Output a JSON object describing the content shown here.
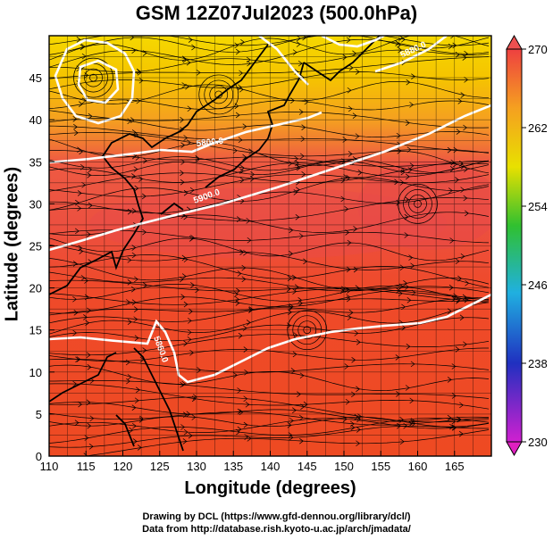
{
  "title": "GSM 12Z07Jul2023 (500.0hPa)",
  "axes": {
    "xlabel": "Longitude (degrees)",
    "ylabel": "Latitude  (degrees)",
    "xticks": [
      "110",
      "115",
      "120",
      "125",
      "130",
      "135",
      "140",
      "145",
      "150",
      "155",
      "160",
      "165"
    ],
    "yticks": [
      "0",
      "5",
      "10",
      "15",
      "20",
      "25",
      "30",
      "35",
      "40",
      "45"
    ],
    "xrange": [
      110,
      170
    ],
    "yrange": [
      0,
      50
    ]
  },
  "colorbar": {
    "ticks": [
      "270",
      "262",
      "254",
      "246",
      "238",
      "230"
    ],
    "range": [
      230,
      270
    ]
  },
  "contours": [
    {
      "label": "5800.0",
      "value": 5800
    },
    {
      "label": "5900.0",
      "value": 5900
    },
    {
      "label": "5860.0",
      "value": 5860
    },
    {
      "label": "5880.0",
      "value": 5880
    }
  ],
  "credits": {
    "line1": "Drawing by DCL (https://www.gfd-dennou.org/library/dcl/)",
    "line2": "Data from http://database.rish.kyoto-u.ac.jp/arch/jmadata/"
  }
}
